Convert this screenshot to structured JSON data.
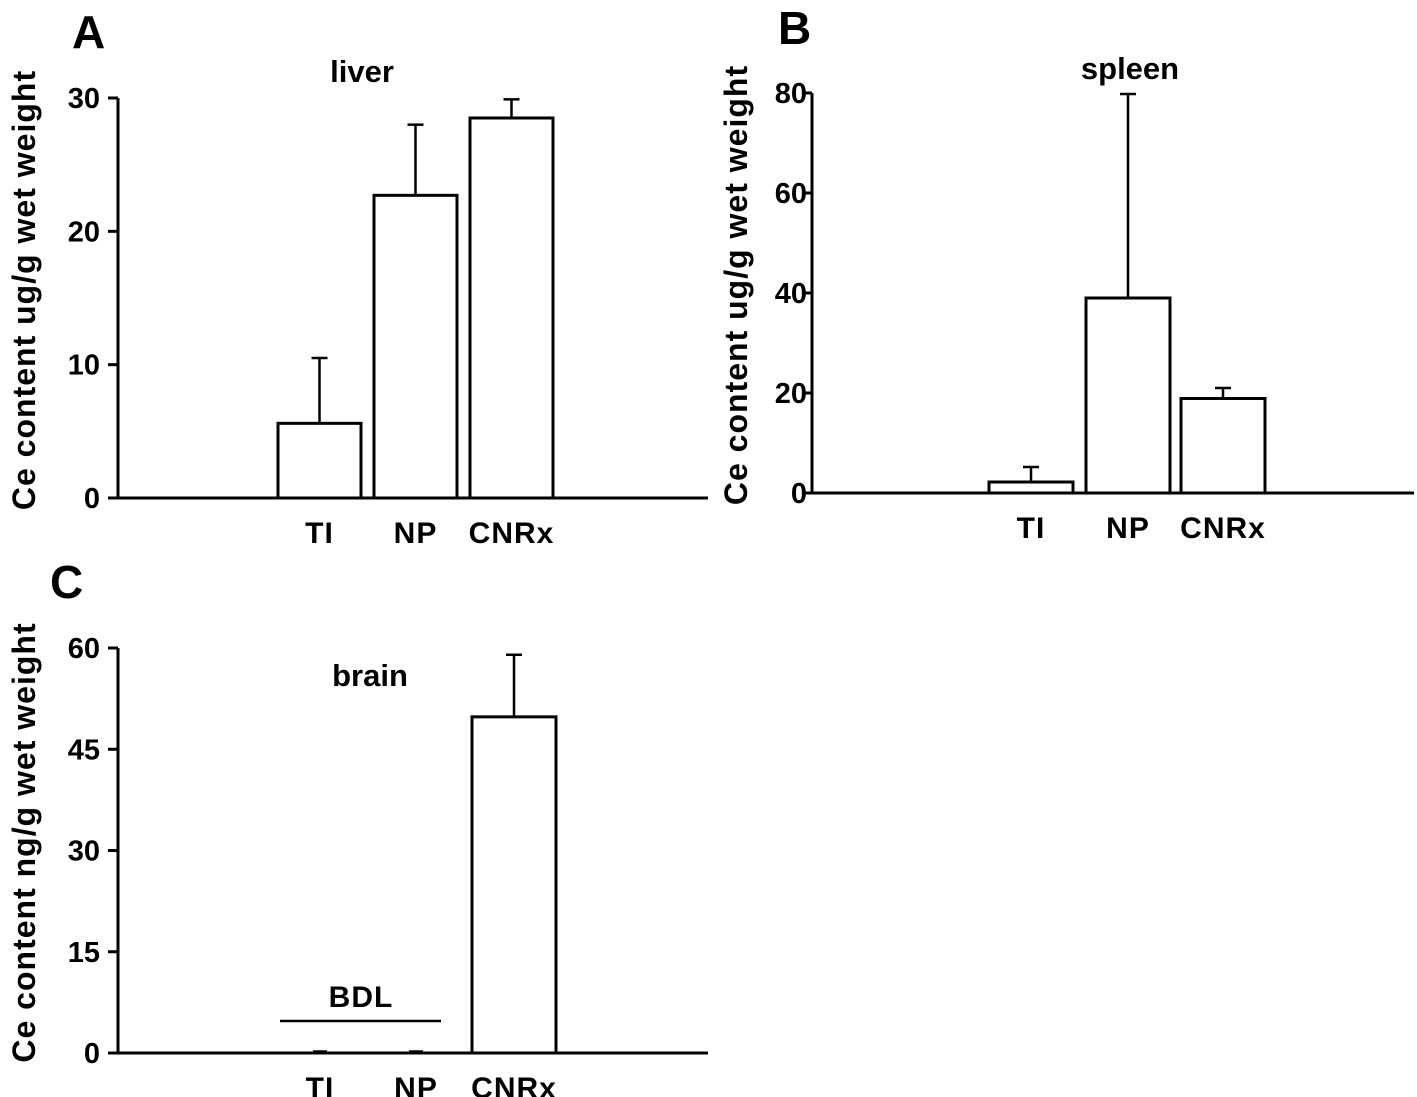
{
  "chart_data": [
    {
      "panel": "A",
      "type": "bar",
      "title": "liver",
      "ylabel": "Ce content ug/g wet weight",
      "categories": [
        "TI",
        "NP",
        "CNRx"
      ],
      "values": [
        5.6,
        22.7,
        28.5
      ],
      "errors": [
        4.9,
        5.3,
        1.4
      ],
      "ylim": [
        0,
        30
      ],
      "yticks": [
        0,
        10,
        20,
        30
      ]
    },
    {
      "panel": "B",
      "type": "bar",
      "title": "spleen",
      "ylabel": "Ce content ug/g wet weight",
      "categories": [
        "TI",
        "NP",
        "CNRx"
      ],
      "values": [
        2.2,
        39.0,
        18.9
      ],
      "errors": [
        3.0,
        40.8,
        2.1
      ],
      "ylim": [
        0,
        80
      ],
      "yticks": [
        0,
        20,
        40,
        60,
        80
      ]
    },
    {
      "panel": "C",
      "type": "bar",
      "title": "brain",
      "ylabel": "Ce content ng/g wet weight",
      "categories": [
        "TI",
        "NP",
        "CNRx"
      ],
      "values": [
        0,
        0,
        49.8
      ],
      "errors": [
        0,
        0,
        9.2
      ],
      "ylim": [
        0,
        60
      ],
      "yticks": [
        0,
        15,
        30,
        45,
        60
      ],
      "annotation": "BDL"
    }
  ]
}
